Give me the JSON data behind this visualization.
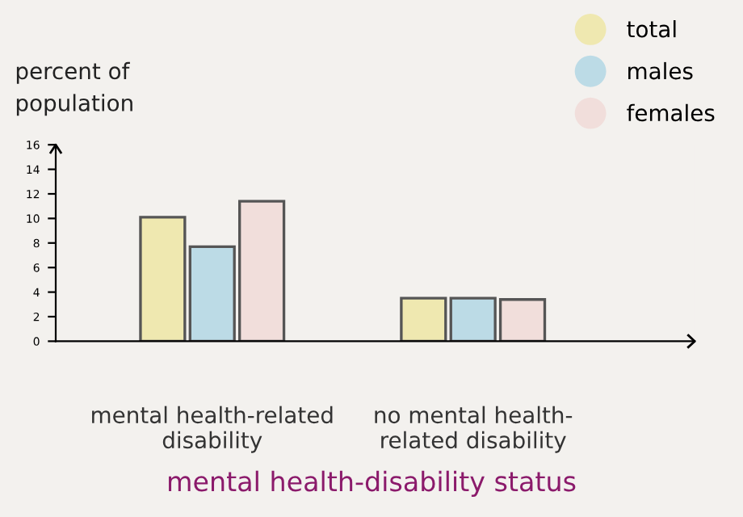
{
  "chart_data": {
    "type": "bar",
    "categories": [
      "mental health-related\ndisability",
      "no mental health-\nrelated disability"
    ],
    "series": [
      {
        "name": "total",
        "color": "#efe8b0",
        "values": [
          10.1,
          3.5
        ]
      },
      {
        "name": "males",
        "color": "#bcdbe6",
        "values": [
          7.7,
          3.5
        ]
      },
      {
        "name": "females",
        "color": "#f1dedb",
        "values": [
          11.4,
          3.4
        ]
      }
    ],
    "ylabel": "percent of\npopulation",
    "xlabel": "mental health-disability status",
    "ylim": [
      0,
      16
    ],
    "yticks": [
      0,
      2,
      4,
      6,
      8,
      10,
      12,
      14,
      16
    ],
    "grid": false,
    "legend": "top right"
  }
}
